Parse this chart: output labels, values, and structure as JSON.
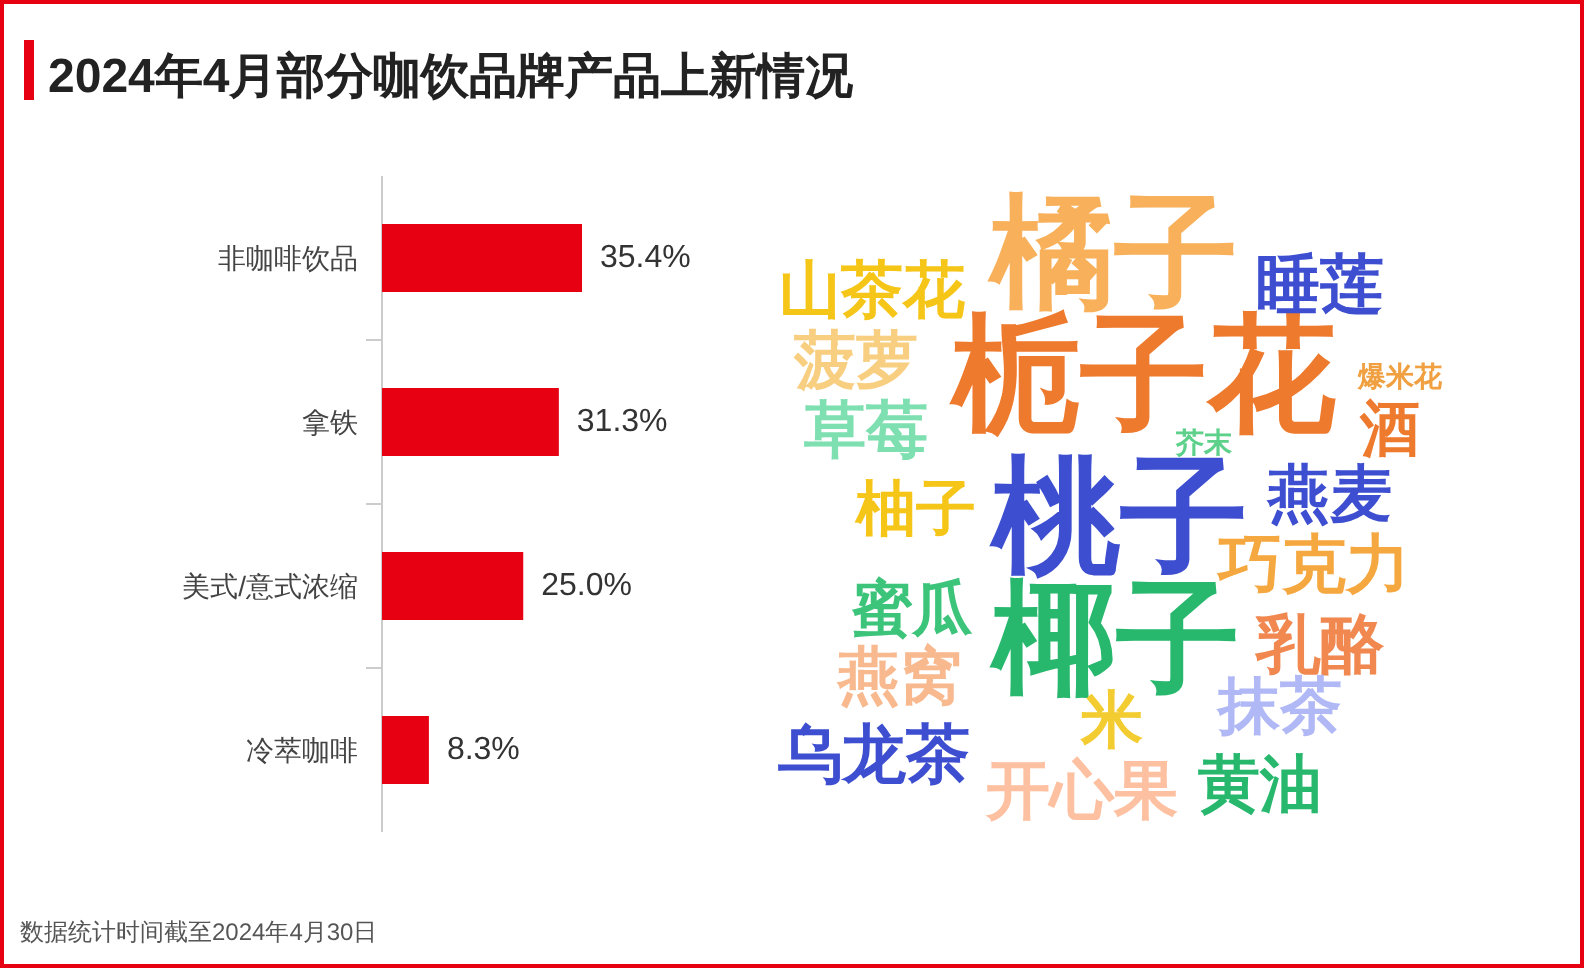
{
  "chart_data": [
    {
      "type": "bar",
      "orientation": "horizontal",
      "title": "2024年4月部分咖饮品牌产品上新情况",
      "categories": [
        "非咖啡饮品",
        "拿铁",
        "美式/意式浓缩",
        "冷萃咖啡"
      ],
      "values": [
        35.4,
        31.3,
        25.0,
        8.3
      ],
      "color": "#e60012",
      "value_labels": [
        "35.4%",
        "31.3%",
        "25.0%",
        "8.3%"
      ],
      "annotations": [
        "数据统计时间截至2024年4月30日"
      ]
    },
    {
      "type": "other",
      "annotations": [
        "橘子",
        "栀子花",
        "桃子",
        "椰子",
        "山茶花",
        "睡莲",
        "菠萝",
        "爆米花",
        "草莓",
        "酒",
        "芥末",
        "柚子",
        "燕麦",
        "巧克力",
        "蜜瓜",
        "乳酪",
        "燕窝",
        "抹茶",
        "米",
        "乌龙茶",
        "开心果",
        "黄油"
      ]
    }
  ]
}
